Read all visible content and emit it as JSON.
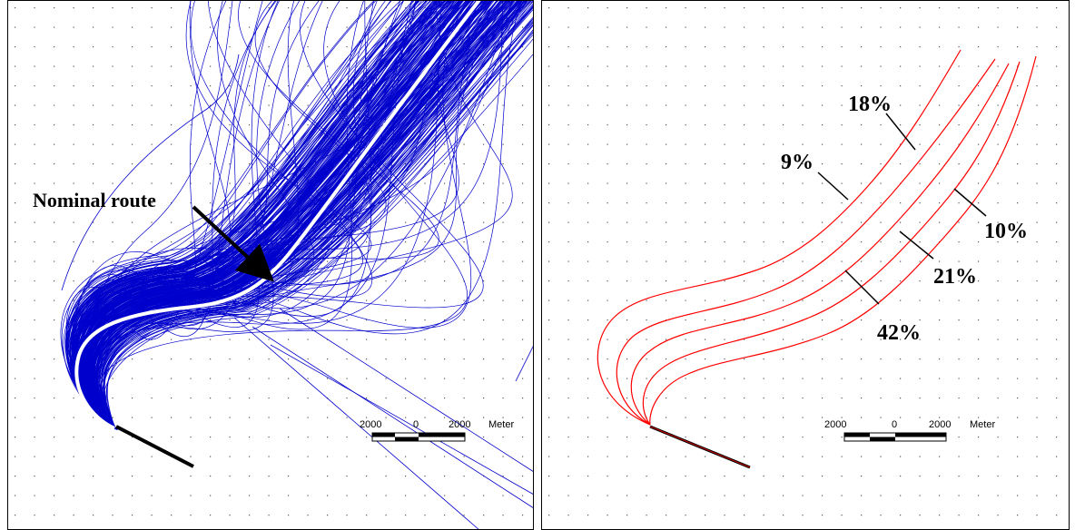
{
  "left_panel": {
    "annotation": "Nominal route",
    "route_color": "#0000cc",
    "nominal_color": "#ffffff",
    "scale": {
      "ticks": [
        "2000",
        "0",
        "2000"
      ],
      "unit": "Meter"
    }
  },
  "right_panel": {
    "route_color": "#ff0000",
    "percent_labels": [
      "18%",
      "9%",
      "10%",
      "21%",
      "42%"
    ],
    "scale": {
      "ticks": [
        "2000",
        "0",
        "2000"
      ],
      "unit": "Meter"
    }
  }
}
